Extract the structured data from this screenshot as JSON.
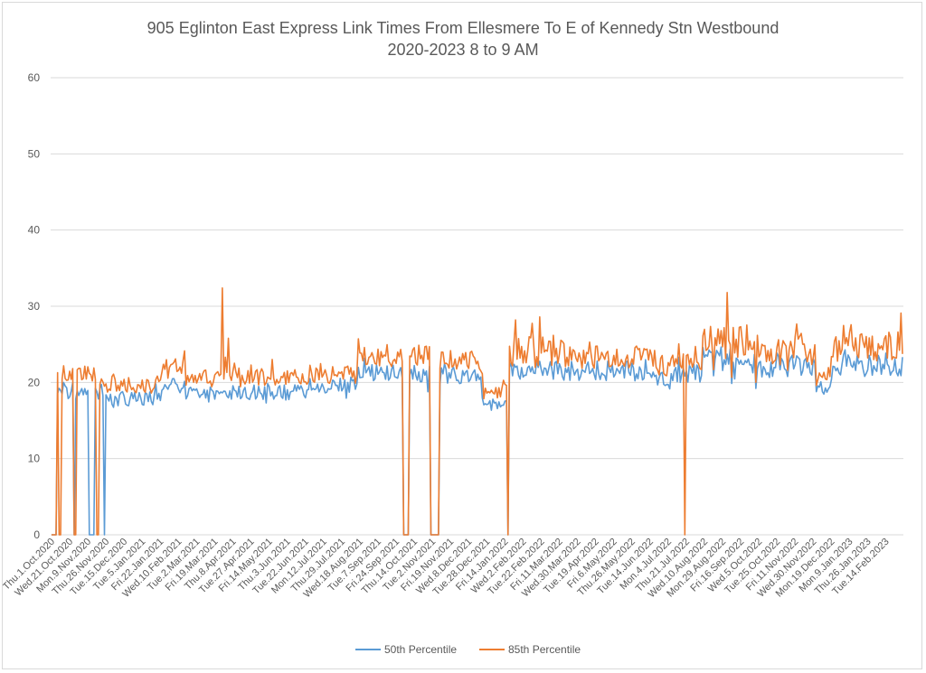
{
  "chart_data": {
    "type": "line",
    "title_line1": "905 Eglinton East Express Link Times From Ellesmere To E of Kennedy Stn Westbound",
    "title_line2": "2020-2023 8 to 9 AM",
    "ylim": [
      0,
      60
    ],
    "yticks": [
      0,
      10,
      20,
      30,
      40,
      50,
      60
    ],
    "grid": true,
    "legend_position": "bottom",
    "x_tick_labels": [
      "Thu.1.Oct.2020",
      "Wed.21.Oct.2020",
      "Mon.9.Nov.2020",
      "Thu.26.Nov.2020",
      "Tue.15.Dec.2020",
      "Tue.5.Jan.2021",
      "Fri.22.Jan.2021",
      "Wed.10.Feb.2021",
      "Tue.2.Mar.2021",
      "Fri.19.Mar.2021",
      "Thu.8.Apr.2021",
      "Tue.27.Apr.2021",
      "Fri.14.May.2021",
      "Thu.3.Jun.2021",
      "Tue.22.Jun.2021",
      "Mon.12.Jul.2021",
      "Thu.29.Jul.2021",
      "Wed.18.Aug.2021",
      "Tue.7.Sep.2021",
      "Fri.24.Sep.2021",
      "Thu.14.Oct.2021",
      "Tue.2.Nov.2021",
      "Fri.19.Nov.2021",
      "Wed.8.Dec.2021",
      "Tue.28.Dec.2021",
      "Fri.14.Jan.2022",
      "Wed.2.Feb.2022",
      "Tue.22.Feb.2022",
      "Fri.11.Mar.2022",
      "Wed.30.Mar.2022",
      "Tue.19.Apr.2022",
      "Fri.6.May.2022",
      "Thu.26.May.2022",
      "Tue.14.Jun.2022",
      "Mon.4.Jul.2022",
      "Thu.21.Jul.2022",
      "Wed.10.Aug.2022",
      "Mon.29.Aug.2022",
      "Fri.16.Sep.2022",
      "Wed.5.Oct.2022",
      "Tue.25.Oct.2022",
      "Fri.11.Nov.2022",
      "Wed.30.Nov.2022",
      "Mon.19.Dec.2022",
      "Mon.9.Jan.2023",
      "Thu.26.Jan.2023",
      "Tue.14.Feb.2023"
    ],
    "x_points_per_tick": 12,
    "x_total_points": 564,
    "series": [
      {
        "name": "50th Percentile",
        "color": "#5b9bd5",
        "segments": [
          {
            "start": 0,
            "end": 3,
            "baseline": 0,
            "amplitude": 0,
            "seed": 1
          },
          {
            "start": 4,
            "end": 14,
            "baseline": 18.8,
            "amplitude": 1.0,
            "seed": 2
          },
          {
            "start": 15,
            "end": 15,
            "baseline": 0,
            "amplitude": 0,
            "seed": 3
          },
          {
            "start": 16,
            "end": 24,
            "baseline": 18.7,
            "amplitude": 1.0,
            "seed": 4
          },
          {
            "start": 25,
            "end": 28,
            "baseline": 0,
            "amplitude": 0,
            "seed": 5
          },
          {
            "start": 29,
            "end": 34,
            "baseline": 18.8,
            "amplitude": 1.0,
            "seed": 6
          },
          {
            "start": 35,
            "end": 35,
            "baseline": 0,
            "amplitude": 0,
            "seed": 7
          },
          {
            "start": 36,
            "end": 72,
            "baseline": 17.8,
            "amplitude": 1.1,
            "seed": 8
          },
          {
            "start": 73,
            "end": 88,
            "baseline": 19.5,
            "amplitude": 1.0,
            "seed": 9
          },
          {
            "start": 89,
            "end": 170,
            "baseline": 18.7,
            "amplitude": 1.0,
            "seed": 10
          },
          {
            "start": 171,
            "end": 202,
            "baseline": 19.6,
            "amplitude": 1.1,
            "seed": 11
          },
          {
            "start": 203,
            "end": 232,
            "baseline": 21.4,
            "amplitude": 1.2,
            "seed": 12
          },
          {
            "start": 233,
            "end": 236,
            "baseline": 0,
            "amplitude": 0,
            "seed": 13
          },
          {
            "start": 237,
            "end": 250,
            "baseline": 21.2,
            "amplitude": 1.3,
            "seed": 14
          },
          {
            "start": 251,
            "end": 256,
            "baseline": 0,
            "amplitude": 0,
            "seed": 15
          },
          {
            "start": 257,
            "end": 284,
            "baseline": 20.8,
            "amplitude": 1.2,
            "seed": 16
          },
          {
            "start": 285,
            "end": 301,
            "baseline": 17.2,
            "amplitude": 0.9,
            "seed": 17
          },
          {
            "start": 302,
            "end": 302,
            "baseline": 0,
            "amplitude": 0,
            "seed": 18
          },
          {
            "start": 303,
            "end": 340,
            "baseline": 21.7,
            "amplitude": 1.5,
            "seed": 19
          },
          {
            "start": 341,
            "end": 400,
            "baseline": 21.5,
            "amplitude": 1.3,
            "seed": 20
          },
          {
            "start": 401,
            "end": 410,
            "baseline": 20.2,
            "amplitude": 1.1,
            "seed": 21
          },
          {
            "start": 411,
            "end": 430,
            "baseline": 21.2,
            "amplitude": 1.2,
            "seed": 22
          },
          {
            "start": 431,
            "end": 460,
            "baseline": 23.0,
            "amplitude": 1.8,
            "seed": 23
          },
          {
            "start": 461,
            "end": 505,
            "baseline": 22.2,
            "amplitude": 1.6,
            "seed": 24
          },
          {
            "start": 506,
            "end": 516,
            "baseline": 19.6,
            "amplitude": 1.0,
            "seed": 25
          },
          {
            "start": 517,
            "end": 563,
            "baseline": 22.3,
            "amplitude": 1.6,
            "seed": 26
          }
        ]
      },
      {
        "name": "85th Percentile",
        "color": "#ed7d31",
        "segments": [
          {
            "start": 0,
            "end": 3,
            "baseline": 0,
            "amplitude": 0,
            "seed": 31
          },
          {
            "start": 4,
            "end": 4,
            "baseline": 21.3,
            "amplitude": 0.2,
            "seed": 32
          },
          {
            "start": 5,
            "end": 6,
            "baseline": 0,
            "amplitude": 0,
            "seed": 33
          },
          {
            "start": 7,
            "end": 14,
            "baseline": 21.2,
            "amplitude": 1.0,
            "seed": 34
          },
          {
            "start": 15,
            "end": 16,
            "baseline": 0,
            "amplitude": 0,
            "seed": 35
          },
          {
            "start": 17,
            "end": 29,
            "baseline": 21.0,
            "amplitude": 1.1,
            "seed": 36
          },
          {
            "start": 30,
            "end": 31,
            "baseline": 0,
            "amplitude": 0,
            "seed": 37
          },
          {
            "start": 32,
            "end": 72,
            "baseline": 19.8,
            "amplitude": 1.2,
            "seed": 38
          },
          {
            "start": 73,
            "end": 88,
            "baseline": 21.8,
            "amplitude": 1.3,
            "seed": 39
          },
          {
            "start": 89,
            "end": 170,
            "baseline": 20.5,
            "amplitude": 1.2,
            "seed": 40
          },
          {
            "start": 171,
            "end": 202,
            "baseline": 21.0,
            "amplitude": 1.3,
            "seed": 41
          },
          {
            "start": 203,
            "end": 232,
            "baseline": 23.3,
            "amplitude": 1.3,
            "seed": 42
          },
          {
            "start": 233,
            "end": 236,
            "baseline": 0,
            "amplitude": 0,
            "seed": 43
          },
          {
            "start": 237,
            "end": 250,
            "baseline": 23.5,
            "amplitude": 1.4,
            "seed": 44
          },
          {
            "start": 251,
            "end": 256,
            "baseline": 0,
            "amplitude": 0,
            "seed": 45
          },
          {
            "start": 257,
            "end": 284,
            "baseline": 22.8,
            "amplitude": 1.4,
            "seed": 46
          },
          {
            "start": 285,
            "end": 301,
            "baseline": 18.8,
            "amplitude": 1.0,
            "seed": 47
          },
          {
            "start": 302,
            "end": 302,
            "baseline": 0,
            "amplitude": 0,
            "seed": 48
          },
          {
            "start": 303,
            "end": 340,
            "baseline": 24.0,
            "amplitude": 2.2,
            "seed": 49
          },
          {
            "start": 341,
            "end": 400,
            "baseline": 23.3,
            "amplitude": 1.5,
            "seed": 50
          },
          {
            "start": 401,
            "end": 410,
            "baseline": 22.0,
            "amplitude": 1.2,
            "seed": 51
          },
          {
            "start": 411,
            "end": 418,
            "baseline": 22.5,
            "amplitude": 1.3,
            "seed": 52
          },
          {
            "start": 419,
            "end": 419,
            "baseline": 0,
            "amplitude": 0,
            "seed": 53
          },
          {
            "start": 420,
            "end": 430,
            "baseline": 22.6,
            "amplitude": 1.3,
            "seed": 54
          },
          {
            "start": 431,
            "end": 460,
            "baseline": 25.3,
            "amplitude": 2.3,
            "seed": 55
          },
          {
            "start": 461,
            "end": 505,
            "baseline": 24.2,
            "amplitude": 2.0,
            "seed": 56
          },
          {
            "start": 506,
            "end": 516,
            "baseline": 21.2,
            "amplitude": 1.2,
            "seed": 57
          },
          {
            "start": 517,
            "end": 563,
            "baseline": 24.6,
            "amplitude": 2.0,
            "seed": 58
          }
        ],
        "spikes": [
          {
            "index": 113,
            "value": 32.4
          },
          {
            "index": 117,
            "value": 25.8
          },
          {
            "index": 447,
            "value": 31.8
          },
          {
            "index": 562,
            "value": 29.1
          },
          {
            "index": 323,
            "value": 28.6
          },
          {
            "index": 307,
            "value": 28.2
          }
        ]
      }
    ]
  }
}
